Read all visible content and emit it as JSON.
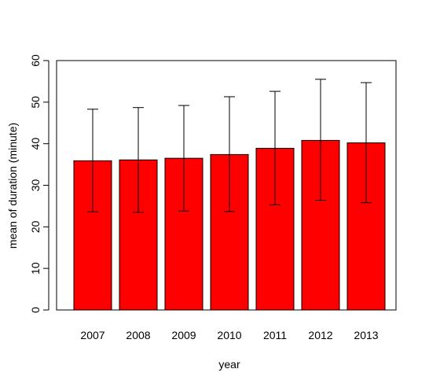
{
  "chart_data": {
    "type": "bar",
    "title": "",
    "xlabel": "year",
    "ylabel": "mean of duration (minute)",
    "categories": [
      "2007",
      "2008",
      "2009",
      "2010",
      "2011",
      "2012",
      "2013"
    ],
    "values": [
      35.9,
      36.1,
      36.5,
      37.4,
      38.9,
      40.8,
      40.2
    ],
    "error_low": [
      23.6,
      23.5,
      23.8,
      23.7,
      25.3,
      26.4,
      25.8
    ],
    "error_high": [
      48.3,
      48.7,
      49.2,
      51.3,
      52.6,
      55.5,
      54.7
    ],
    "ylim": [
      0,
      60
    ],
    "yticks": [
      "0",
      "10",
      "20",
      "30",
      "40",
      "50",
      "60"
    ],
    "bar_color": "#ff0000",
    "grid": false,
    "legend": "none"
  }
}
